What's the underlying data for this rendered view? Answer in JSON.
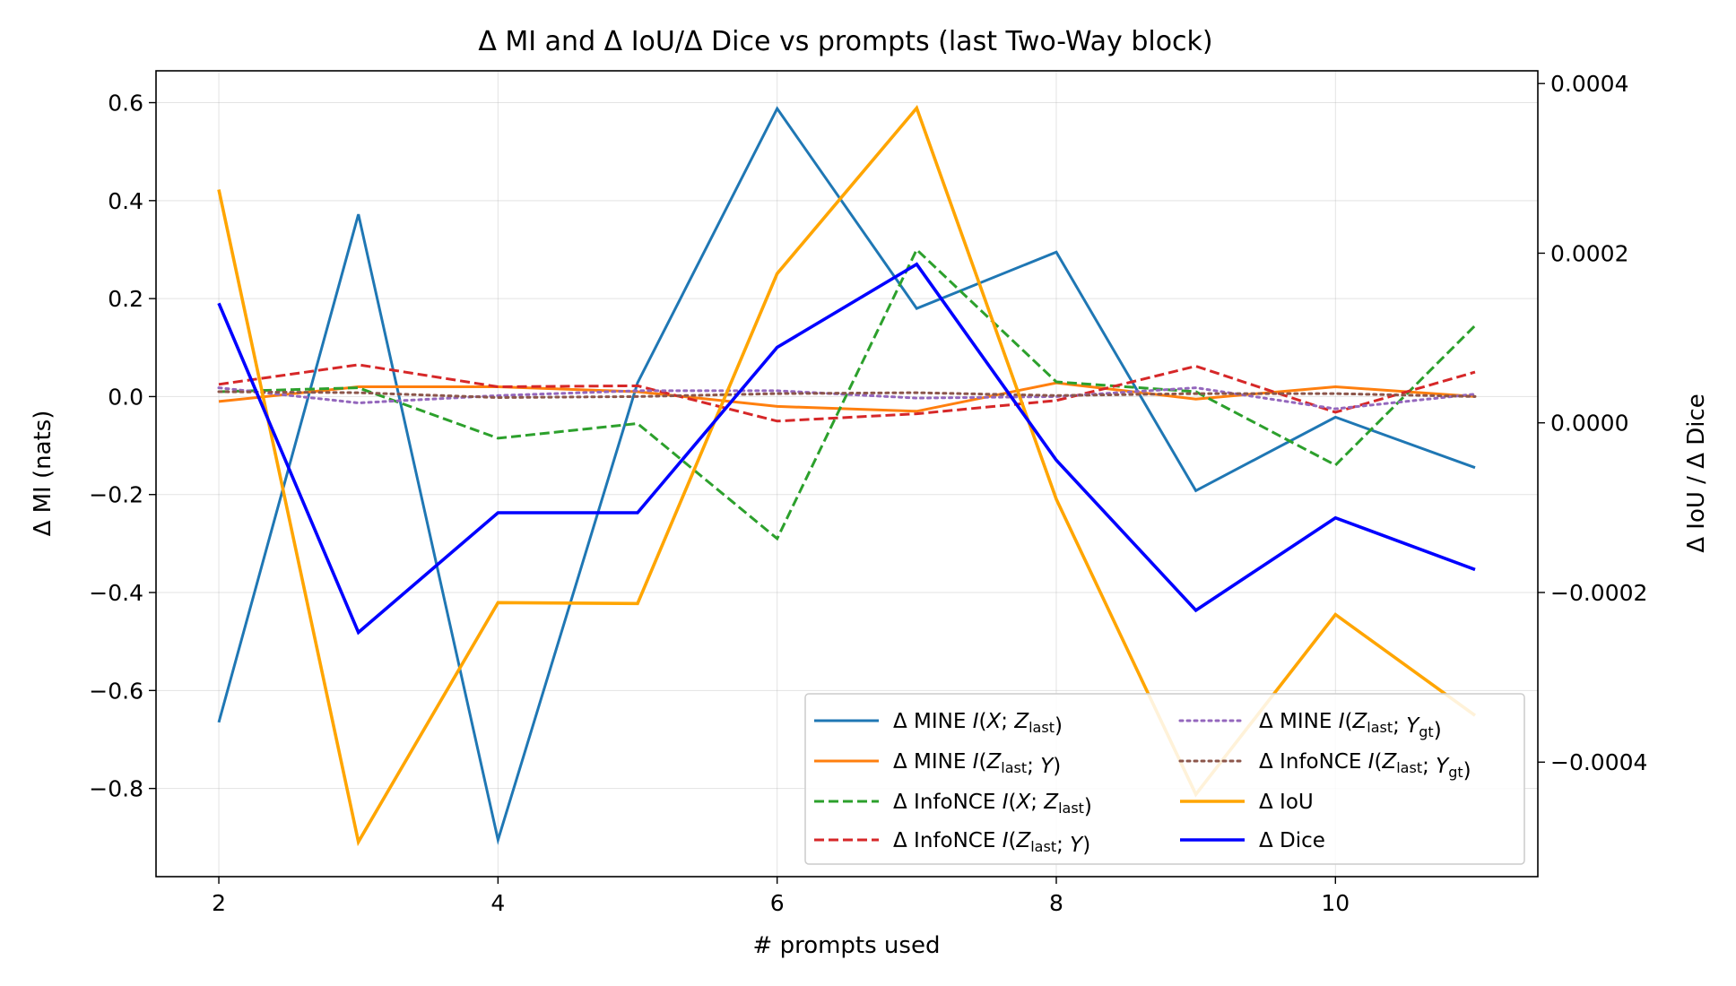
{
  "chart_data": {
    "type": "line",
    "title": "Δ MI and Δ IoU/Δ Dice vs prompts (last Two-Way block)",
    "xlabel": "# prompts used",
    "ylabel_left": "Δ MI (nats)",
    "ylabel_right": "Δ IoU / Δ Dice",
    "x": [
      2,
      3,
      4,
      5,
      6,
      7,
      8,
      9,
      10,
      11
    ],
    "xlim": [
      1.55,
      11.45
    ],
    "xticks": [
      "2",
      "4",
      "6",
      "8",
      "10"
    ],
    "ylim_left": [
      -0.98,
      0.665
    ],
    "yticks_left": [
      "0.6",
      "0.4",
      "0.2",
      "0.0",
      "−0.2",
      "−0.4",
      "−0.6",
      "−0.8"
    ],
    "ylim_right": [
      -0.000535,
      0.000415
    ],
    "yticks_right": [
      "0.0004",
      "0.0002",
      "0.0000",
      "−0.0002",
      "−0.0004"
    ],
    "grid": true,
    "legend_position": "lower-right",
    "series": [
      {
        "name": "Δ MINE  I(X; Z_last)",
        "axis": "left",
        "color": "#1f77b4",
        "style": "solid",
        "values": [
          -0.665,
          0.372,
          -0.905,
          0.028,
          0.588,
          0.18,
          0.295,
          -0.192,
          -0.042,
          -0.145
        ]
      },
      {
        "name": "Δ MINE  I(Z_last; Y)",
        "axis": "left",
        "color": "#ff7f0e",
        "style": "solid",
        "values": [
          -0.01,
          0.02,
          0.02,
          0.01,
          -0.02,
          -0.03,
          0.028,
          -0.005,
          0.02,
          0.0
        ]
      },
      {
        "name": "Δ InfoNCE  I(X; Z_last)",
        "axis": "left",
        "color": "#2ca02c",
        "style": "dashed",
        "values": [
          0.01,
          0.018,
          -0.085,
          -0.055,
          -0.29,
          0.3,
          0.03,
          0.01,
          -0.14,
          0.145
        ]
      },
      {
        "name": "Δ InfoNCE  I(Z_last; Y)",
        "axis": "left",
        "color": "#d62728",
        "style": "dashed",
        "values": [
          0.025,
          0.065,
          0.02,
          0.022,
          -0.05,
          -0.035,
          -0.008,
          0.062,
          -0.032,
          0.05
        ]
      },
      {
        "name": "Δ MINE  I(Z_last; Y_gt)",
        "axis": "left",
        "color": "#9467bd",
        "style": "dotted",
        "values": [
          0.018,
          -0.013,
          0.002,
          0.012,
          0.012,
          -0.003,
          0.0,
          0.018,
          -0.025,
          0.005
        ]
      },
      {
        "name": "Δ InfoNCE  I(Z_last; Y_gt)",
        "axis": "left",
        "color": "#8c564b",
        "style": "dotted",
        "values": [
          0.01,
          0.008,
          -0.002,
          0.0,
          0.006,
          0.008,
          0.002,
          0.006,
          0.006,
          0.0
        ]
      },
      {
        "name": "Δ IoU",
        "axis": "right",
        "color": "#ffa500",
        "style": "solid",
        "values": [
          0.000275,
          -0.000494,
          -0.000212,
          -0.000213,
          0.000176,
          0.000371,
          -9e-05,
          -0.000438,
          -0.000226,
          -0.000345
        ]
      },
      {
        "name": "Δ Dice",
        "axis": "right",
        "color": "#0000ff",
        "style": "solid",
        "values": [
          0.000141,
          -0.000247,
          -0.000106,
          -0.000106,
          8.9e-05,
          0.000187,
          -4.4e-05,
          -0.000221,
          -0.000112,
          -0.000173
        ]
      }
    ],
    "legend_columns": [
      [
        {
          "series": 0,
          "parts": [
            [
              "Δ MINE  ",
              "n"
            ],
            [
              "I",
              "i"
            ],
            [
              "(",
              "n"
            ],
            [
              "X",
              "i"
            ],
            [
              "; ",
              "n"
            ],
            [
              "Z",
              "i"
            ],
            [
              "last",
              "sub"
            ],
            [
              ")",
              "n"
            ]
          ]
        },
        {
          "series": 1,
          "parts": [
            [
              "Δ MINE  ",
              "n"
            ],
            [
              "I",
              "i"
            ],
            [
              "(",
              "n"
            ],
            [
              "Z",
              "i"
            ],
            [
              "last",
              "sub"
            ],
            [
              "; ",
              "n"
            ],
            [
              "Y",
              "i"
            ],
            [
              ")",
              "n"
            ]
          ]
        },
        {
          "series": 2,
          "parts": [
            [
              "Δ InfoNCE  ",
              "n"
            ],
            [
              "I",
              "i"
            ],
            [
              "(",
              "n"
            ],
            [
              "X",
              "i"
            ],
            [
              "; ",
              "n"
            ],
            [
              "Z",
              "i"
            ],
            [
              "last",
              "sub"
            ],
            [
              ")",
              "n"
            ]
          ]
        },
        {
          "series": 3,
          "parts": [
            [
              "Δ InfoNCE  ",
              "n"
            ],
            [
              "I",
              "i"
            ],
            [
              "(",
              "n"
            ],
            [
              "Z",
              "i"
            ],
            [
              "last",
              "sub"
            ],
            [
              "; ",
              "n"
            ],
            [
              "Y",
              "i"
            ],
            [
              ")",
              "n"
            ]
          ]
        }
      ],
      [
        {
          "series": 4,
          "parts": [
            [
              "Δ MINE  ",
              "n"
            ],
            [
              "I",
              "i"
            ],
            [
              "(",
              "n"
            ],
            [
              "Z",
              "i"
            ],
            [
              "last",
              "sub"
            ],
            [
              "; ",
              "n"
            ],
            [
              "Y",
              "i"
            ],
            [
              "gt",
              "sub"
            ],
            [
              ")",
              "n"
            ]
          ]
        },
        {
          "series": 5,
          "parts": [
            [
              "Δ InfoNCE  ",
              "n"
            ],
            [
              "I",
              "i"
            ],
            [
              "(",
              "n"
            ],
            [
              "Z",
              "i"
            ],
            [
              "last",
              "sub"
            ],
            [
              "; ",
              "n"
            ],
            [
              "Y",
              "i"
            ],
            [
              "gt",
              "sub"
            ],
            [
              ")",
              "n"
            ]
          ]
        },
        {
          "series": 6,
          "parts": [
            [
              "Δ IoU",
              "n"
            ]
          ]
        },
        {
          "series": 7,
          "parts": [
            [
              "Δ Dice",
              "n"
            ]
          ]
        }
      ]
    ]
  }
}
